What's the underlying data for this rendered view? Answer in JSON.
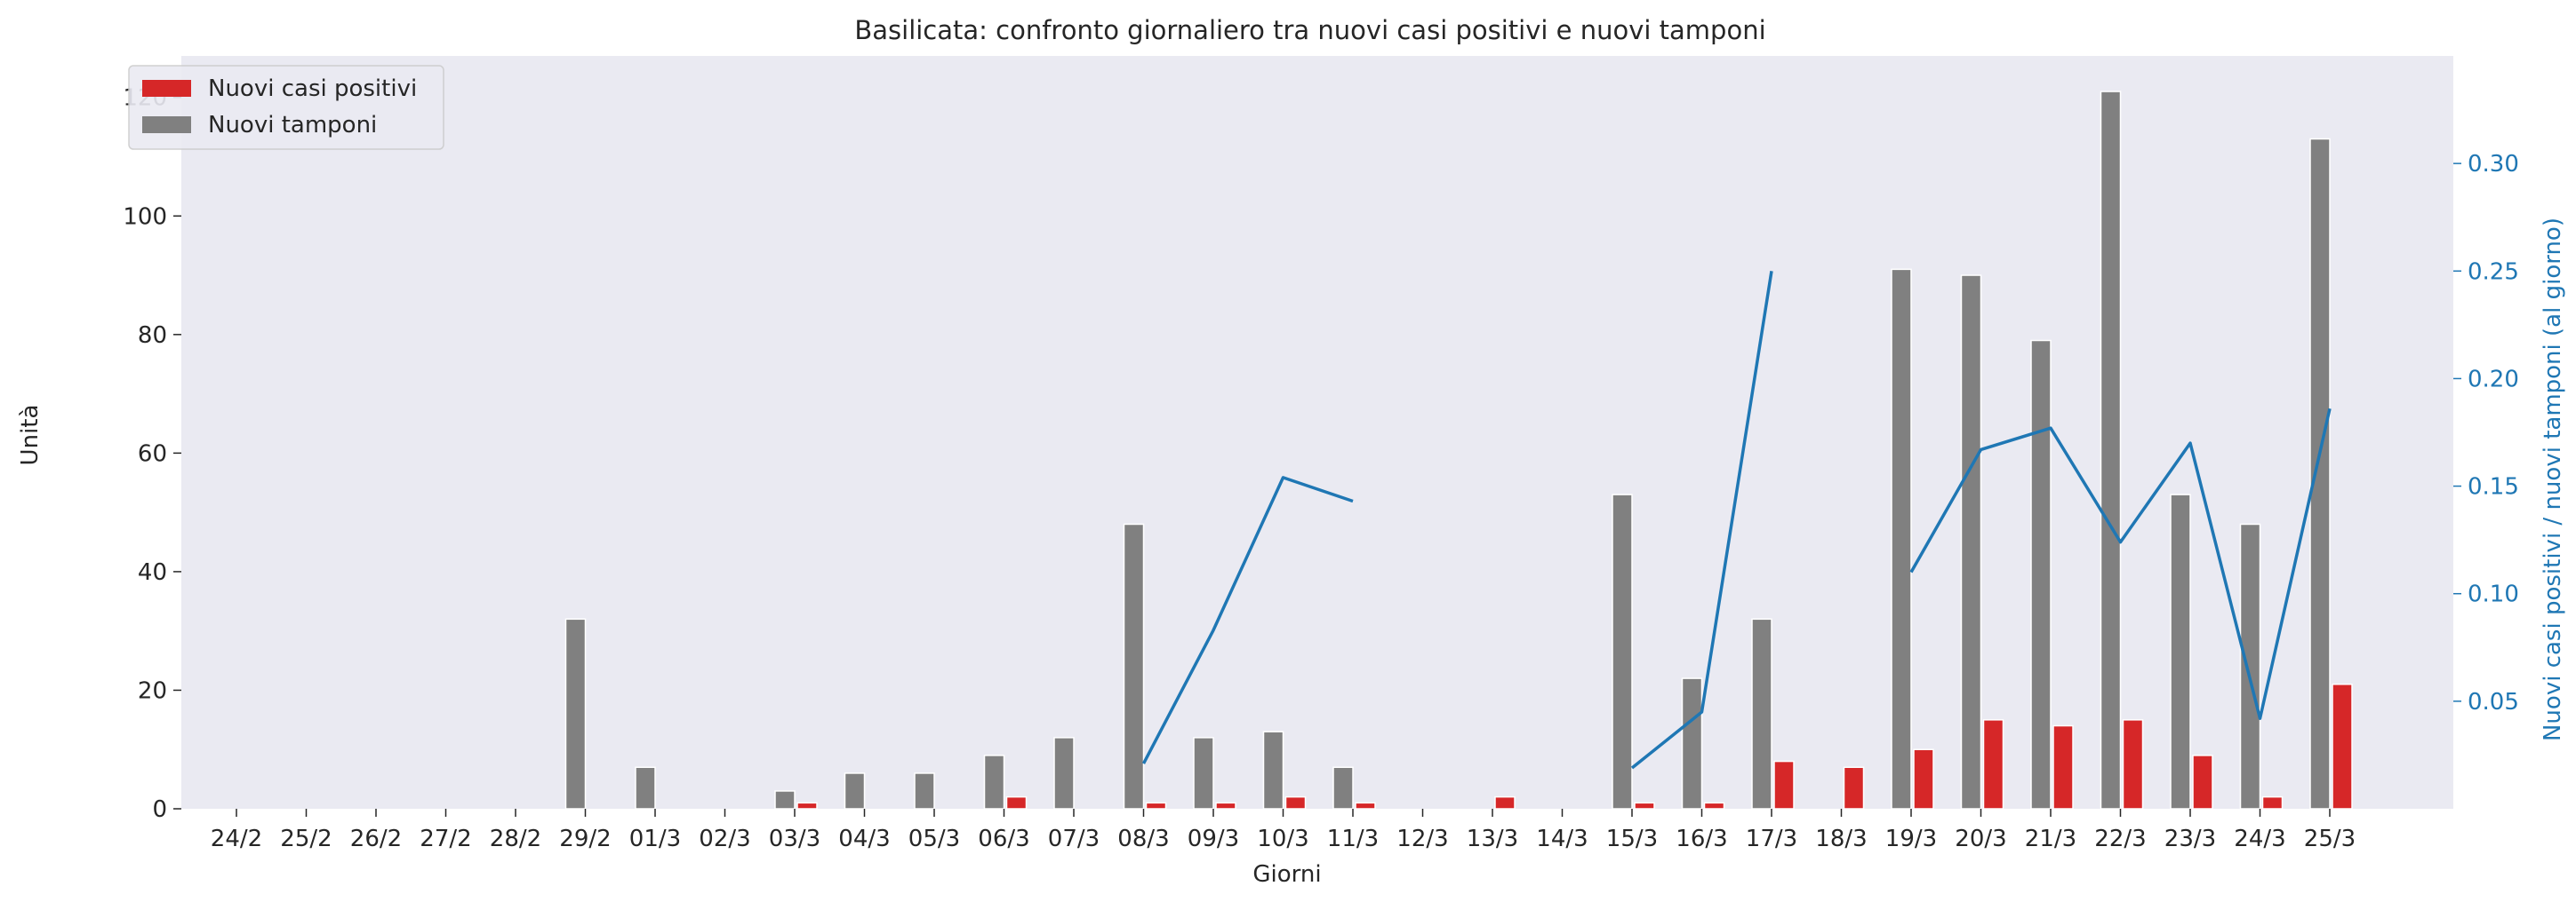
{
  "chart_data": {
    "type": "bar",
    "title": "Basilicata: confronto giornaliero tra nuovi casi positivi e nuovi tamponi",
    "xlabel": "Giorni",
    "ylabel": "Unità",
    "y2label": "Nuovi casi positivi / nuovi tamponi (al giorno)",
    "categories": [
      "24/2",
      "25/2",
      "26/2",
      "27/2",
      "28/2",
      "29/2",
      "01/3",
      "02/3",
      "03/3",
      "04/3",
      "05/3",
      "06/3",
      "07/3",
      "08/3",
      "09/3",
      "10/3",
      "11/3",
      "12/3",
      "13/3",
      "14/3",
      "15/3",
      "16/3",
      "17/3",
      "18/3",
      "19/3",
      "20/3",
      "21/3",
      "22/3",
      "23/3",
      "24/3",
      "25/3"
    ],
    "ylim": [
      0,
      127
    ],
    "yticks": [
      0,
      20,
      40,
      60,
      80,
      100,
      120
    ],
    "y2lim": [
      0.0,
      0.35
    ],
    "y2ticks": [
      0.05,
      0.1,
      0.15,
      0.2,
      0.25,
      0.3
    ],
    "y2ticklabels": [
      "0.05",
      "0.10",
      "0.15",
      "0.20",
      "0.25",
      "0.30"
    ],
    "legend_position": "top-left",
    "grid": false,
    "series": [
      {
        "name": "Nuovi casi positivi",
        "kind": "bar",
        "axis": "left",
        "color": "#d62728",
        "values": [
          0,
          0,
          0,
          0,
          0,
          0,
          0,
          0,
          1,
          0,
          0,
          2,
          0,
          1,
          1,
          2,
          1,
          0,
          2,
          0,
          1,
          1,
          8,
          7,
          10,
          15,
          14,
          15,
          9,
          2,
          21
        ]
      },
      {
        "name": "Nuovi tamponi",
        "kind": "bar",
        "axis": "left",
        "color": "#808080",
        "values": [
          0,
          0,
          0,
          0,
          0,
          32,
          7,
          0,
          3,
          6,
          6,
          9,
          12,
          48,
          12,
          13,
          7,
          0,
          0,
          0,
          53,
          22,
          32,
          0,
          91,
          90,
          79,
          121,
          53,
          48,
          113
        ]
      },
      {
        "kind": "line",
        "axis": "right",
        "color": "#1f77b4",
        "values": [
          null,
          null,
          null,
          null,
          null,
          null,
          null,
          null,
          null,
          null,
          null,
          null,
          null,
          0.021,
          0.083,
          0.154,
          0.143,
          null,
          null,
          null,
          0.019,
          0.045,
          0.25,
          null,
          0.11,
          0.167,
          0.177,
          0.124,
          0.17,
          0.042,
          0.186
        ]
      }
    ]
  }
}
